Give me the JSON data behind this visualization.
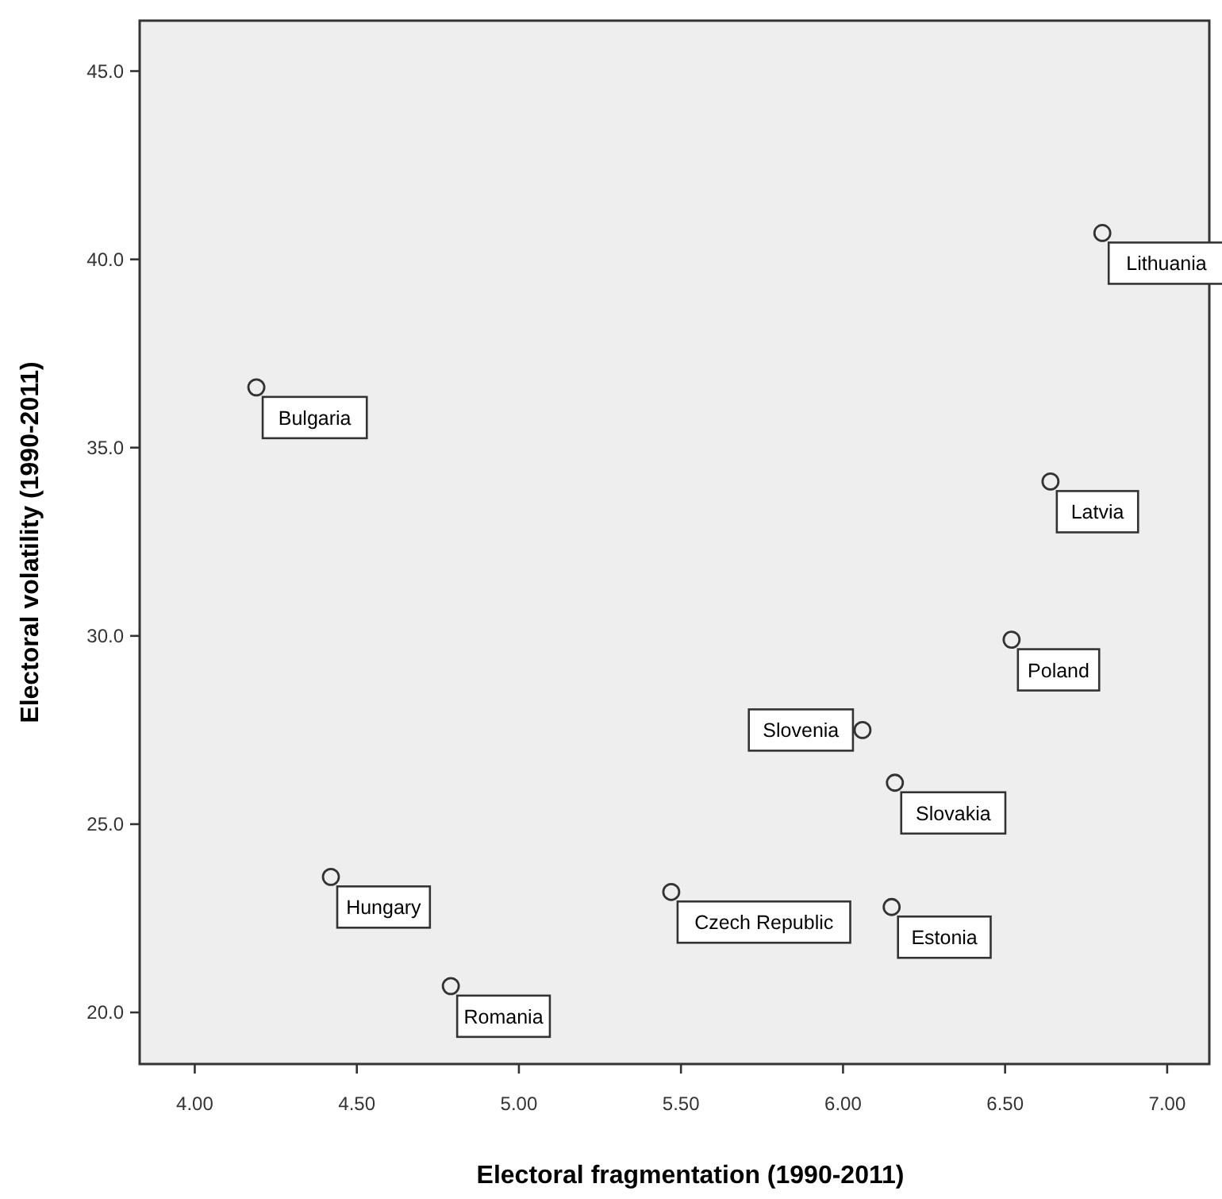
{
  "chart_data": {
    "type": "scatter",
    "xlabel": "Electoral fragmentation (1990-2011)",
    "ylabel": "Electoral volatility (1990-2011)",
    "x": [
      4.19,
      6.8,
      6.64,
      6.52,
      6.06,
      6.16,
      4.42,
      5.47,
      6.15,
      4.79
    ],
    "values": [
      36.6,
      40.7,
      34.1,
      29.9,
      27.5,
      26.1,
      23.6,
      23.2,
      22.8,
      20.7
    ],
    "color": "#333333",
    "marker": "circle",
    "annotations": [
      {
        "text": "Bulgaria",
        "x": 4.19,
        "y": 36.6
      },
      {
        "text": "Lithuania",
        "x": 6.8,
        "y": 40.7
      },
      {
        "text": "Latvia",
        "x": 6.64,
        "y": 34.1
      },
      {
        "text": "Poland",
        "x": 6.52,
        "y": 29.9
      },
      {
        "text": "Slovenia",
        "x": 6.06,
        "y": 27.5
      },
      {
        "text": "Slovakia",
        "x": 6.16,
        "y": 26.1
      },
      {
        "text": "Hungary",
        "x": 4.42,
        "y": 23.6
      },
      {
        "text": "Czech Republic",
        "x": 5.47,
        "y": 23.2
      },
      {
        "text": "Estonia",
        "x": 6.15,
        "y": 22.8
      },
      {
        "text": "Romania",
        "x": 4.79,
        "y": 20.7
      }
    ],
    "xlim": [
      3.83,
      7.13
    ],
    "ylim": [
      18.63,
      46.34
    ],
    "xticks": [
      {
        "value": 4,
        "label": "4.00"
      },
      {
        "value": 4.5,
        "label": "4.50"
      },
      {
        "value": 5,
        "label": "5.00"
      },
      {
        "value": 5.5,
        "label": "5.50"
      },
      {
        "value": 6,
        "label": "6.00"
      },
      {
        "value": 6.5,
        "label": "6.50"
      },
      {
        "value": 7,
        "label": "7.00"
      }
    ],
    "yticks": [
      {
        "value": 20,
        "label": "20.0"
      },
      {
        "value": 25,
        "label": "25.0"
      },
      {
        "value": 30,
        "label": "30.0"
      },
      {
        "value": 35,
        "label": "35.0"
      },
      {
        "value": 40,
        "label": "40.0"
      },
      {
        "value": 45,
        "label": "45.0"
      }
    ],
    "grid": false
  }
}
